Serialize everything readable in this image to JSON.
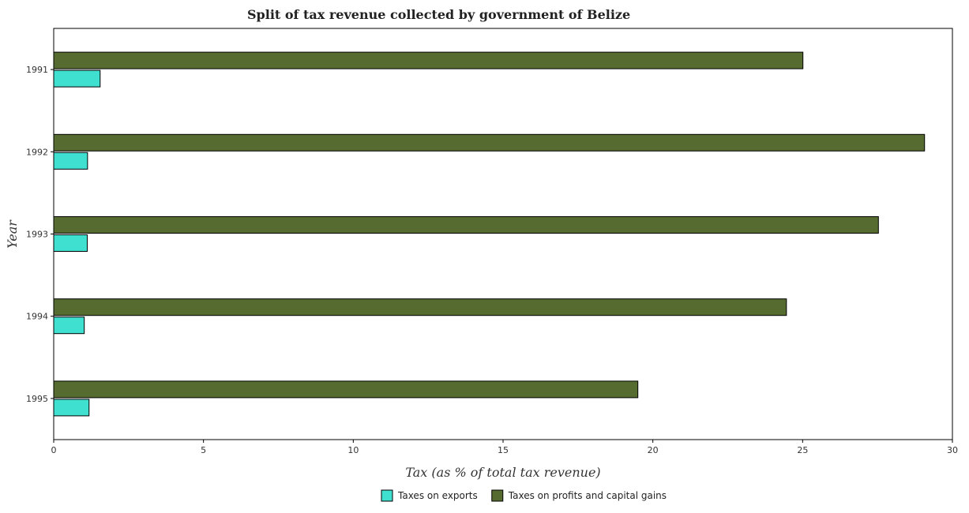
{
  "chart_data": {
    "type": "bar",
    "orientation": "horizontal",
    "title": "Split of tax revenue collected by government of Belize",
    "xlabel": "Tax (as % of total tax revenue)",
    "ylabel": "Year",
    "categories": [
      "1991",
      "1992",
      "1993",
      "1994",
      "1995"
    ],
    "series": [
      {
        "name": "Taxes on exports",
        "color": "#40e0d0",
        "values": [
          1.55,
          1.13,
          1.12,
          1.02,
          1.18
        ]
      },
      {
        "name": "Taxes on profits and capital gains",
        "color": "#556b2f",
        "values": [
          25.01,
          29.07,
          27.53,
          24.46,
          19.5
        ]
      }
    ],
    "xlim": [
      0,
      30
    ],
    "xticks": [
      0,
      5,
      10,
      15,
      20,
      25,
      30
    ],
    "grid": false,
    "legend_position": "bottom-center"
  }
}
